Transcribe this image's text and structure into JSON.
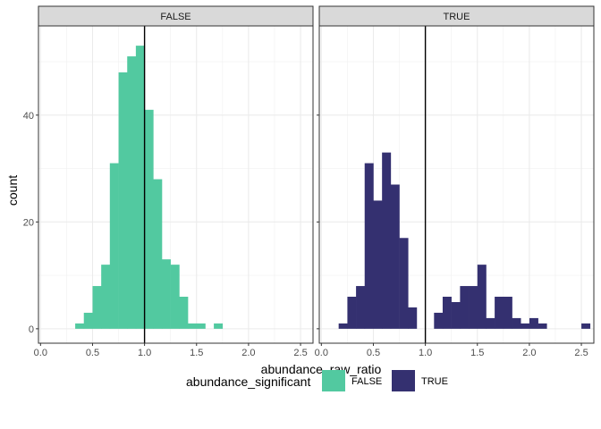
{
  "chart_data": {
    "type": "bar",
    "subtype": "faceted-histogram",
    "title": "",
    "xlabel": "abundance_raw_ratio",
    "ylabel": "count",
    "xlim": [
      -0.02,
      2.62
    ],
    "ylim": [
      -2.7,
      56.7
    ],
    "x_ticks": [
      0.0,
      0.5,
      1.0,
      1.5,
      2.0,
      2.5
    ],
    "x_tick_labels": [
      "0.0",
      "0.5",
      "1.0",
      "1.5",
      "2.0",
      "2.5"
    ],
    "y_ticks": [
      0,
      20,
      40
    ],
    "y_tick_labels": [
      "0",
      "20",
      "40"
    ],
    "bin_width": 0.0833,
    "bin_start": 0.375,
    "reference_line_x": 1.0,
    "grid": true,
    "legend": {
      "title": "abundance_significant",
      "position": "bottom",
      "entries": [
        {
          "label": "FALSE",
          "color": "#52C9A0"
        },
        {
          "label": "TRUE",
          "color": "#343070"
        }
      ]
    },
    "facets": [
      {
        "strip": "FALSE",
        "fill": "#52C9A0",
        "bins": [
          {
            "x": 0.375,
            "count": 1
          },
          {
            "x": 0.458,
            "count": 3
          },
          {
            "x": 0.542,
            "count": 8
          },
          {
            "x": 0.625,
            "count": 12
          },
          {
            "x": 0.708,
            "count": 31
          },
          {
            "x": 0.792,
            "count": 48
          },
          {
            "x": 0.875,
            "count": 51
          },
          {
            "x": 0.958,
            "count": 53
          },
          {
            "x": 1.042,
            "count": 41
          },
          {
            "x": 1.125,
            "count": 28
          },
          {
            "x": 1.208,
            "count": 13
          },
          {
            "x": 1.292,
            "count": 12
          },
          {
            "x": 1.375,
            "count": 6
          },
          {
            "x": 1.458,
            "count": 1
          },
          {
            "x": 1.542,
            "count": 1
          },
          {
            "x": 1.708,
            "count": 1
          }
        ]
      },
      {
        "strip": "TRUE",
        "fill": "#343070",
        "bins": [
          {
            "x": 0.208,
            "count": 1
          },
          {
            "x": 0.292,
            "count": 6
          },
          {
            "x": 0.375,
            "count": 8
          },
          {
            "x": 0.458,
            "count": 31
          },
          {
            "x": 0.542,
            "count": 24
          },
          {
            "x": 0.625,
            "count": 33
          },
          {
            "x": 0.708,
            "count": 27
          },
          {
            "x": 0.792,
            "count": 17
          },
          {
            "x": 0.875,
            "count": 4
          },
          {
            "x": 1.125,
            "count": 3
          },
          {
            "x": 1.208,
            "count": 6
          },
          {
            "x": 1.292,
            "count": 5
          },
          {
            "x": 1.375,
            "count": 8
          },
          {
            "x": 1.458,
            "count": 8
          },
          {
            "x": 1.542,
            "count": 12
          },
          {
            "x": 1.625,
            "count": 2
          },
          {
            "x": 1.708,
            "count": 6
          },
          {
            "x": 1.792,
            "count": 6
          },
          {
            "x": 1.875,
            "count": 2
          },
          {
            "x": 1.958,
            "count": 1
          },
          {
            "x": 2.042,
            "count": 2
          },
          {
            "x": 2.125,
            "count": 1
          },
          {
            "x": 2.542,
            "count": 1
          }
        ]
      }
    ]
  }
}
